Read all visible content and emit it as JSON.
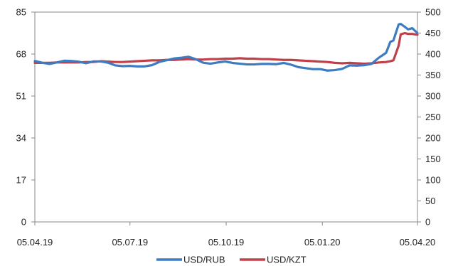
{
  "chart_data": {
    "type": "line",
    "title": "",
    "xlabel": "",
    "x_ticks": [
      "05.04.19",
      "05.07.19",
      "05.10.19",
      "05.01.20",
      "05.04.20"
    ],
    "y_left": {
      "range": [
        0,
        85
      ],
      "ticks": [
        0,
        17,
        34,
        51,
        68,
        85
      ]
    },
    "y_right": {
      "range": [
        0,
        500
      ],
      "ticks": [
        0,
        50,
        100,
        150,
        200,
        250,
        300,
        350,
        400,
        450,
        500
      ]
    },
    "grid": false,
    "legend_position": "bottom",
    "series": [
      {
        "name": "USD/RUB",
        "axis": "left",
        "color": "#3d7cc0",
        "points": [
          [
            "05.04.19",
            65.2
          ],
          [
            "12.04.19",
            64.5
          ],
          [
            "19.04.19",
            64.0
          ],
          [
            "26.04.19",
            64.6
          ],
          [
            "03.05.19",
            65.3
          ],
          [
            "10.05.19",
            65.2
          ],
          [
            "17.05.19",
            64.9
          ],
          [
            "24.05.19",
            64.3
          ],
          [
            "31.05.19",
            65.0
          ],
          [
            "07.06.19",
            65.0
          ],
          [
            "14.06.19",
            64.5
          ],
          [
            "21.06.19",
            63.4
          ],
          [
            "28.06.19",
            63.1
          ],
          [
            "05.07.19",
            63.2
          ],
          [
            "12.07.19",
            63.0
          ],
          [
            "19.07.19",
            63.0
          ],
          [
            "26.07.19",
            63.5
          ],
          [
            "02.08.19",
            64.8
          ],
          [
            "09.08.19",
            65.5
          ],
          [
            "16.08.19",
            66.2
          ],
          [
            "23.08.19",
            66.5
          ],
          [
            "30.08.19",
            66.9
          ],
          [
            "06.09.19",
            65.9
          ],
          [
            "13.09.19",
            64.5
          ],
          [
            "20.09.19",
            64.1
          ],
          [
            "27.09.19",
            64.6
          ],
          [
            "04.10.19",
            65.0
          ],
          [
            "11.10.19",
            64.4
          ],
          [
            "18.10.19",
            64.1
          ],
          [
            "25.10.19",
            63.8
          ],
          [
            "01.11.19",
            63.8
          ],
          [
            "08.11.19",
            64.0
          ],
          [
            "15.11.19",
            64.0
          ],
          [
            "22.11.19",
            63.9
          ],
          [
            "29.11.19",
            64.4
          ],
          [
            "06.12.19",
            63.7
          ],
          [
            "13.12.19",
            62.7
          ],
          [
            "20.12.19",
            62.3
          ],
          [
            "27.12.19",
            61.9
          ],
          [
            "03.01.20",
            61.9
          ],
          [
            "10.01.20",
            61.3
          ],
          [
            "17.01.20",
            61.5
          ],
          [
            "24.01.20",
            62.0
          ],
          [
            "31.01.20",
            63.4
          ],
          [
            "07.02.20",
            63.3
          ],
          [
            "14.02.20",
            63.5
          ],
          [
            "21.02.20",
            64.0
          ],
          [
            "28.02.20",
            66.5
          ],
          [
            "06.03.20",
            68.5
          ],
          [
            "10.03.20",
            72.9
          ],
          [
            "13.03.20",
            73.5
          ],
          [
            "18.03.20",
            80.0
          ],
          [
            "20.03.20",
            80.2
          ],
          [
            "24.03.20",
            79.0
          ],
          [
            "27.03.20",
            78.0
          ],
          [
            "31.03.20",
            78.5
          ],
          [
            "05.04.20",
            76.5
          ]
        ]
      },
      {
        "name": "USD/KZT",
        "axis": "right",
        "color": "#c0404a",
        "points": [
          [
            "05.04.19",
            379
          ],
          [
            "12.04.19",
            379
          ],
          [
            "19.04.19",
            379
          ],
          [
            "26.04.19",
            380
          ],
          [
            "03.05.19",
            380
          ],
          [
            "10.05.19",
            380
          ],
          [
            "17.05.19",
            380
          ],
          [
            "24.05.19",
            381
          ],
          [
            "31.05.19",
            381
          ],
          [
            "07.06.19",
            383
          ],
          [
            "14.06.19",
            382
          ],
          [
            "21.06.19",
            381
          ],
          [
            "28.06.19",
            381
          ],
          [
            "05.07.19",
            382
          ],
          [
            "12.07.19",
            383
          ],
          [
            "19.07.19",
            384
          ],
          [
            "26.07.19",
            385
          ],
          [
            "02.08.19",
            385
          ],
          [
            "09.08.19",
            386
          ],
          [
            "16.08.19",
            386
          ],
          [
            "23.08.19",
            387
          ],
          [
            "30.08.19",
            388
          ],
          [
            "06.09.19",
            387
          ],
          [
            "13.09.19",
            387
          ],
          [
            "20.09.19",
            388
          ],
          [
            "27.09.19",
            388
          ],
          [
            "04.10.19",
            389
          ],
          [
            "11.10.19",
            389
          ],
          [
            "18.10.19",
            390
          ],
          [
            "25.10.19",
            389
          ],
          [
            "01.11.19",
            389
          ],
          [
            "08.11.19",
            388
          ],
          [
            "15.11.19",
            388
          ],
          [
            "22.11.19",
            387
          ],
          [
            "29.11.19",
            386
          ],
          [
            "06.12.19",
            386
          ],
          [
            "13.12.19",
            385
          ],
          [
            "20.12.19",
            384
          ],
          [
            "27.12.19",
            383
          ],
          [
            "03.01.20",
            382
          ],
          [
            "10.01.20",
            381
          ],
          [
            "17.01.20",
            379
          ],
          [
            "24.01.20",
            378
          ],
          [
            "31.01.20",
            379
          ],
          [
            "07.02.20",
            378
          ],
          [
            "14.02.20",
            377
          ],
          [
            "21.02.20",
            378
          ],
          [
            "28.02.20",
            380
          ],
          [
            "06.03.20",
            381
          ],
          [
            "10.03.20",
            383
          ],
          [
            "13.03.20",
            385
          ],
          [
            "18.03.20",
            420
          ],
          [
            "20.03.20",
            447
          ],
          [
            "24.03.20",
            450
          ],
          [
            "27.03.20",
            448
          ],
          [
            "31.03.20",
            448
          ],
          [
            "05.04.20",
            446
          ]
        ]
      }
    ]
  },
  "legend": [
    {
      "label": "USD/RUB",
      "color": "#3d7cc0"
    },
    {
      "label": "USD/KZT",
      "color": "#c0404a"
    }
  ]
}
